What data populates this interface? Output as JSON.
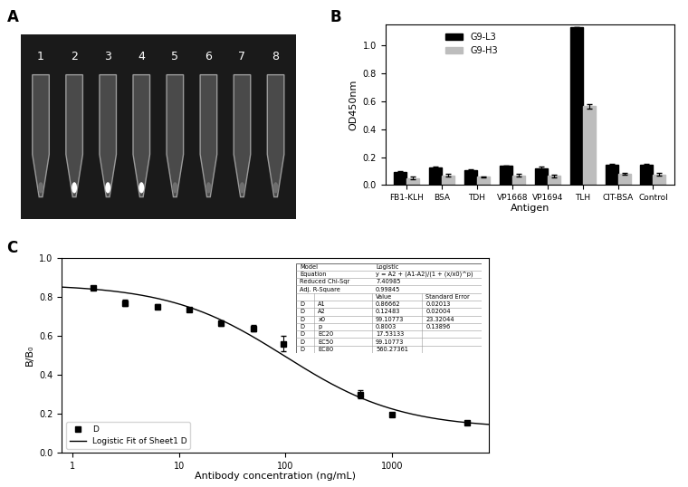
{
  "chart_data": [
    {
      "type": "image",
      "title": "A",
      "categories": [
        "1",
        "2",
        "3",
        "4",
        "5",
        "6",
        "7",
        "8"
      ],
      "colors": [
        "#6e6e6e",
        "#ffffff",
        "#ffffff",
        "#ffffff",
        "#6e6e6e",
        "#6e6e6e",
        "#6e6e6e",
        "#6e6e6e"
      ]
    },
    {
      "type": "bar",
      "title": "B",
      "x_label": "Antigen",
      "y_label": "OD450nm",
      "categories": [
        "FB1-KLH",
        "BSA",
        "TDH",
        "VP1668",
        "VP1694",
        "TLH",
        "CIT-BSA",
        "Control"
      ],
      "series": [
        {
          "name": "G9-L3",
          "color": "#000000",
          "values": [
            0.095,
            0.125,
            0.105,
            0.14,
            0.12,
            1.13,
            0.145,
            0.145
          ],
          "errors": [
            0.005,
            0.01,
            0.005,
            0.002,
            0.012,
            0.002,
            0.01,
            0.005
          ]
        },
        {
          "name": "G9-H3",
          "color": "#bdbdbd",
          "values": [
            0.05,
            0.07,
            0.058,
            0.068,
            0.065,
            0.565,
            0.08,
            0.075
          ],
          "errors": [
            0.01,
            0.008,
            0.005,
            0.01,
            0.01,
            0.015,
            0.008,
            0.01
          ]
        }
      ],
      "ylim": [
        0,
        1.15
      ],
      "yticks": [
        {
          "value": 0,
          "label": "0.0"
        },
        {
          "value": 0.2,
          "label": "0.2"
        },
        {
          "value": 0.4,
          "label": "0.4"
        },
        {
          "value": 0.6,
          "label": "0.6"
        },
        {
          "value": 0.8,
          "label": "0.8"
        },
        {
          "value": 1.0,
          "label": "1.0"
        }
      ],
      "legend": "upper left"
    },
    {
      "type": "scatter",
      "title": "C",
      "x_label": "Antibody concentration (ng/mL)",
      "y_label": "B/B₀",
      "log": "x",
      "xlim": [
        0.8,
        8000
      ],
      "xticks": [
        1,
        10,
        100,
        1000
      ],
      "ylim": [
        0,
        1.0
      ],
      "yticks": [
        {
          "value": 0,
          "label": "0.0"
        },
        {
          "value": 0.2,
          "label": "0.2"
        },
        {
          "value": 0.4,
          "label": "0.4"
        },
        {
          "value": 0.6,
          "label": "0.6"
        },
        {
          "value": 0.8,
          "label": "0.8"
        },
        {
          "value": 1.0,
          "label": "1.0"
        }
      ],
      "legend": "lower left",
      "series": [
        {
          "name": "D",
          "type": "scatter",
          "color": "#000000",
          "marker": "square",
          "x": [
            1.5625,
            3.125,
            6.25,
            12.5,
            25,
            50,
            95,
            500,
            1000,
            5000
          ],
          "values": [
            0.845,
            0.77,
            0.752,
            0.737,
            0.665,
            0.64,
            0.56,
            0.3,
            0.197,
            0.153
          ],
          "errors": [
            0.005,
            0.015,
            0.01,
            0.01,
            0.015,
            0.015,
            0.04,
            0.02,
            0.005,
            0.005
          ]
        },
        {
          "name": "Logistic Fit of Sheet1 D",
          "type": "line",
          "color": "#000000",
          "line_style": "solid",
          "fit": {
            "A1": 0.86662,
            "A2": 0.12483,
            "x0": 99.10773,
            "p": 0.8003
          }
        }
      ],
      "fit_table": {
        "info": [
          [
            "Model",
            "Logistic"
          ],
          [
            "Equation",
            "y = A2 + (A1-A2)/(1 + (x/x0)^p)"
          ],
          [
            "Reduced Chi-Sqr",
            "7.40985"
          ],
          [
            "Adj. R-Square",
            "0.99845"
          ]
        ],
        "header": [
          "Value",
          "Standard Error"
        ],
        "rows": [
          [
            "D",
            "A1",
            "0.86662",
            "0.02013"
          ],
          [
            "D",
            "A2",
            "0.12483",
            "0.02004"
          ],
          [
            "D",
            "x0",
            "99.10773",
            "23.32044"
          ],
          [
            "D",
            "p",
            "0.8003",
            "0.13896"
          ],
          [
            "D",
            "EC20",
            "17.53133"
          ],
          [
            "D",
            "EC50",
            "99.10773"
          ],
          [
            "D",
            "EC80",
            "560.27361"
          ]
        ]
      }
    }
  ]
}
